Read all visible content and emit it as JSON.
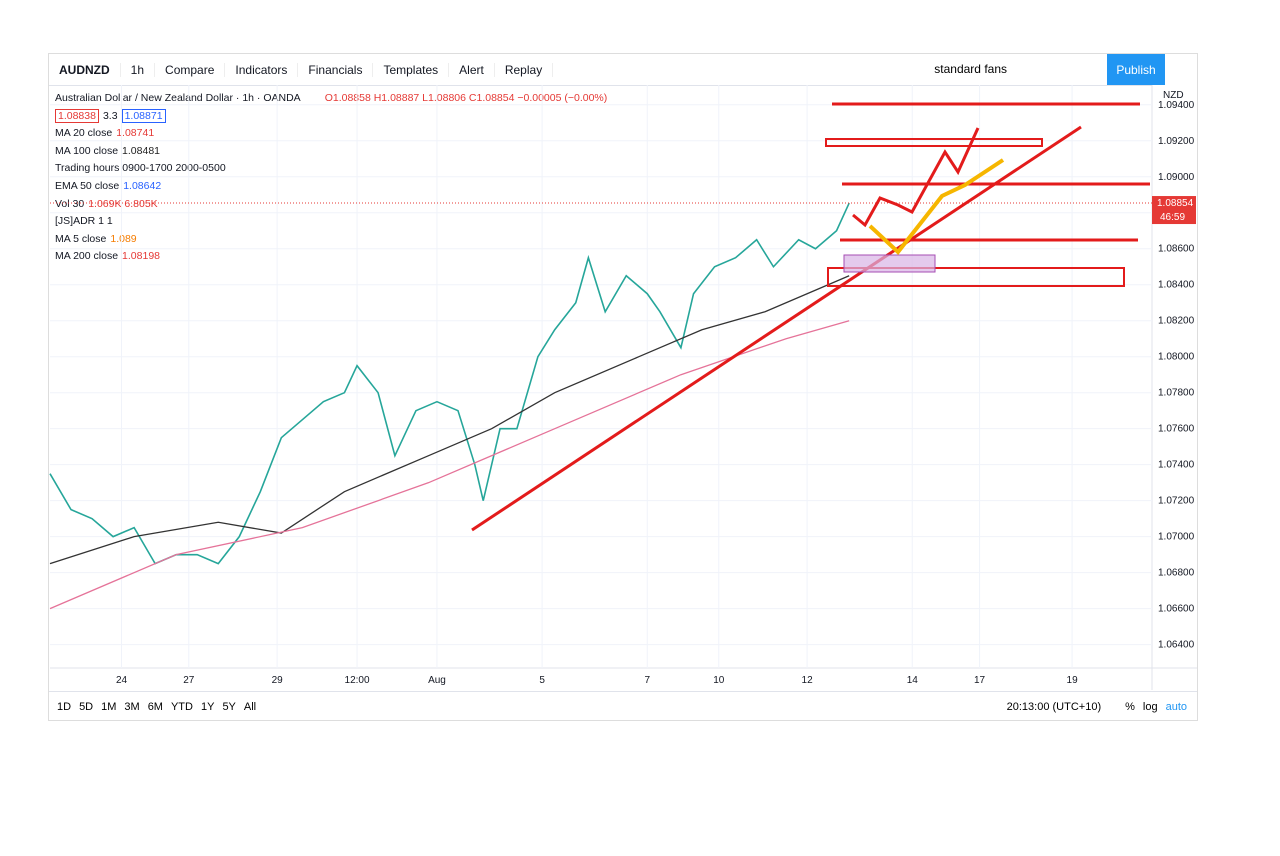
{
  "toolbar": {
    "symbol": "AUDNZD",
    "interval": "1h",
    "items": [
      "Compare",
      "Indicators",
      "Financials",
      "Templates",
      "Alert",
      "Replay"
    ],
    "layout": "standard fans",
    "publish": "Publish"
  },
  "legend": {
    "title": "Australian Dollar / New Zealand Dollar · 1h · OANDA",
    "ohlc": "O1.08858 H1.08887 L1.08806 C1.08854 −0.00005 (−0.00%)",
    "bid": "1.08838",
    "spread": "3.3",
    "ask": "1.08871",
    "indicators": [
      {
        "name": "MA 20 close",
        "value": "1.08741",
        "color": "#e53935"
      },
      {
        "name": "MA 100 close",
        "value": "1.08481",
        "color": "#222"
      },
      {
        "name": "Trading hours 0900-1700 2000-0500",
        "value": "",
        "color": "#222"
      },
      {
        "name": "EMA 50 close",
        "value": "1.08642",
        "color": "#2962ff"
      },
      {
        "name": "Vol 30",
        "value": "1.069K 6.805K",
        "color": "#e53935"
      },
      {
        "name": "[JS]ADR 1 1",
        "value": "",
        "color": "#999"
      },
      {
        "name": "MA 5 close",
        "value": "1.089",
        "color": "#f57c00"
      },
      {
        "name": "MA 200 close",
        "value": "1.08198",
        "color": "#e53935"
      }
    ]
  },
  "chart_data": {
    "type": "line",
    "currency": "NZD",
    "ylim": [
      1.0627,
      1.0951
    ],
    "yticks": [
      {
        "value": 1.094,
        "label": "1.09400"
      },
      {
        "value": 1.092,
        "label": "1.09200"
      },
      {
        "value": 1.09,
        "label": "1.09000"
      },
      {
        "value": 1.088,
        "label": "1.08800"
      },
      {
        "value": 1.086,
        "label": "1.08600"
      },
      {
        "value": 1.084,
        "label": "1.08400"
      },
      {
        "value": 1.082,
        "label": "1.08200"
      },
      {
        "value": 1.08,
        "label": "1.08000"
      },
      {
        "value": 1.078,
        "label": "1.07800"
      },
      {
        "value": 1.076,
        "label": "1.07600"
      },
      {
        "value": 1.074,
        "label": "1.07400"
      },
      {
        "value": 1.072,
        "label": "1.07200"
      },
      {
        "value": 1.07,
        "label": "1.07000"
      },
      {
        "value": 1.068,
        "label": "1.06800"
      },
      {
        "value": 1.066,
        "label": "1.06600"
      },
      {
        "value": 1.064,
        "label": "1.06400"
      }
    ],
    "xlim": [
      0,
      262
    ],
    "xticks": [
      {
        "value": 17,
        "label": "24"
      },
      {
        "value": 33,
        "label": "27"
      },
      {
        "value": 54,
        "label": "29"
      },
      {
        "value": 73,
        "label": "12:00"
      },
      {
        "value": 92,
        "label": "Aug"
      },
      {
        "value": 117,
        "label": "5"
      },
      {
        "value": 142,
        "label": "7"
      },
      {
        "value": 159,
        "label": "10"
      },
      {
        "value": 180,
        "label": "12"
      },
      {
        "value": 205,
        "label": "14"
      },
      {
        "value": 221,
        "label": "17"
      },
      {
        "value": 243,
        "label": "19"
      }
    ],
    "series": [
      {
        "color": "#26a69a",
        "x": [
          0,
          5,
          10,
          15,
          20,
          25,
          30,
          35,
          40,
          45,
          50,
          55,
          60,
          65,
          70,
          73,
          78,
          82,
          87,
          92,
          97,
          101,
          103,
          107,
          111,
          116,
          120,
          125,
          128,
          132,
          137,
          142,
          145,
          150,
          153,
          158,
          163,
          168,
          172,
          178,
          182,
          187,
          190
        ],
        "values": [
          1.0735,
          1.0715,
          1.071,
          1.07,
          1.0705,
          1.0685,
          1.069,
          1.069,
          1.0685,
          1.07,
          1.0725,
          1.0755,
          1.0765,
          1.0775,
          1.078,
          1.0795,
          1.078,
          1.0745,
          1.077,
          1.0775,
          1.077,
          1.074,
          1.072,
          1.076,
          1.076,
          1.08,
          1.0815,
          1.083,
          1.0855,
          1.0825,
          1.0845,
          1.0835,
          1.0825,
          1.0805,
          1.0835,
          1.085,
          1.0855,
          1.0865,
          1.085,
          1.0865,
          1.086,
          1.087,
          1.08854
        ]
      },
      {
        "color": "#333333",
        "x": [
          0,
          20,
          40,
          55,
          70,
          90,
          105,
          120,
          140,
          155,
          170,
          185,
          190
        ],
        "values": [
          1.0685,
          1.07,
          1.0708,
          1.0702,
          1.0725,
          1.0745,
          1.076,
          1.078,
          1.08,
          1.0815,
          1.0825,
          1.084,
          1.0845
        ]
      },
      {
        "color": "#e57399",
        "x": [
          0,
          30,
          60,
          90,
          120,
          150,
          175,
          190
        ],
        "values": [
          1.066,
          1.069,
          1.0705,
          1.073,
          1.076,
          1.079,
          1.081,
          1.082
        ]
      }
    ],
    "last_price": {
      "value": 1.08854,
      "label": "1.08854"
    },
    "countdown": "46:59"
  },
  "bottom_bar": {
    "ranges": [
      "1D",
      "5D",
      "1M",
      "3M",
      "6M",
      "YTD",
      "1Y",
      "5Y",
      "All"
    ],
    "time": "20:13:00 (UTC+10)",
    "percent": "%",
    "log": "log",
    "auto": "auto"
  }
}
